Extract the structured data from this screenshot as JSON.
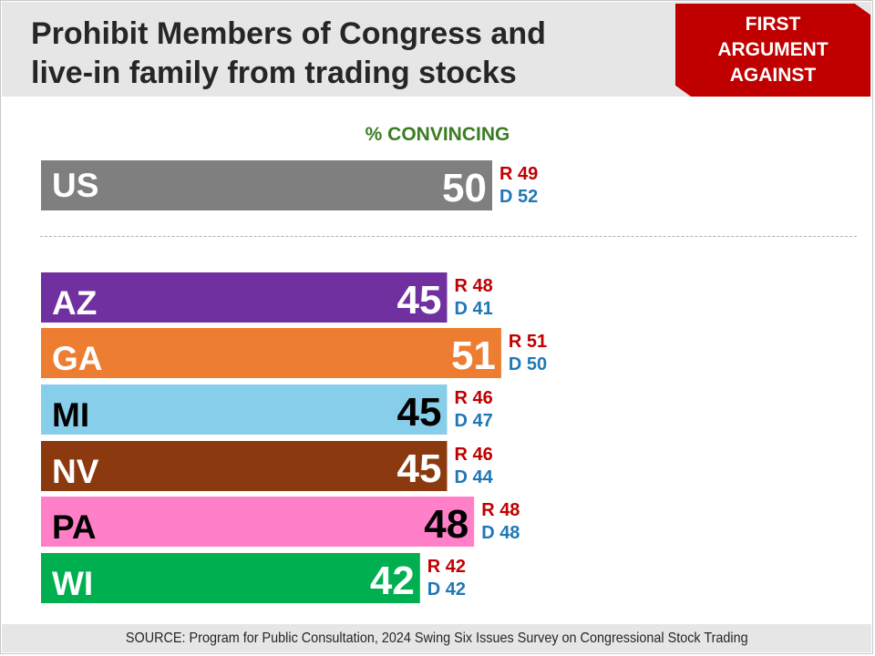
{
  "title_line1": "Prohibit Members of Congress and",
  "title_line2": "live-in family from trading stocks",
  "badge": [
    "FIRST",
    "ARGUMENT",
    "AGAINST"
  ],
  "source": "SOURCE: Program for Public Consultation, 2024 Swing Six Issues Survey on Congressional Stock Trading",
  "chart_data": {
    "type": "bar",
    "orientation": "horizontal",
    "title": "Prohibit Members of Congress and live-in family from trading stocks",
    "subtitle": "% CONVINCING",
    "categories": [
      "US",
      "AZ",
      "GA",
      "MI",
      "NV",
      "PA",
      "WI"
    ],
    "values": [
      50,
      45,
      51,
      45,
      45,
      48,
      42
    ],
    "republican": [
      49,
      48,
      51,
      46,
      46,
      48,
      42
    ],
    "democrat": [
      52,
      41,
      50,
      47,
      44,
      48,
      42
    ],
    "r_prefix": "R",
    "d_prefix": "D",
    "bar_colors": [
      "#7f7f7f",
      "#7030a0",
      "#ed7d31",
      "#87ceeb",
      "#8b3a10",
      "#ff7fc8",
      "#00b050"
    ],
    "label_colors": [
      "#ffffff",
      "#ffffff",
      "#ffffff",
      "#000000",
      "#ffffff",
      "#000000",
      "#ffffff"
    ],
    "r_color": "#c00000",
    "d_color": "#1f77b4"
  }
}
